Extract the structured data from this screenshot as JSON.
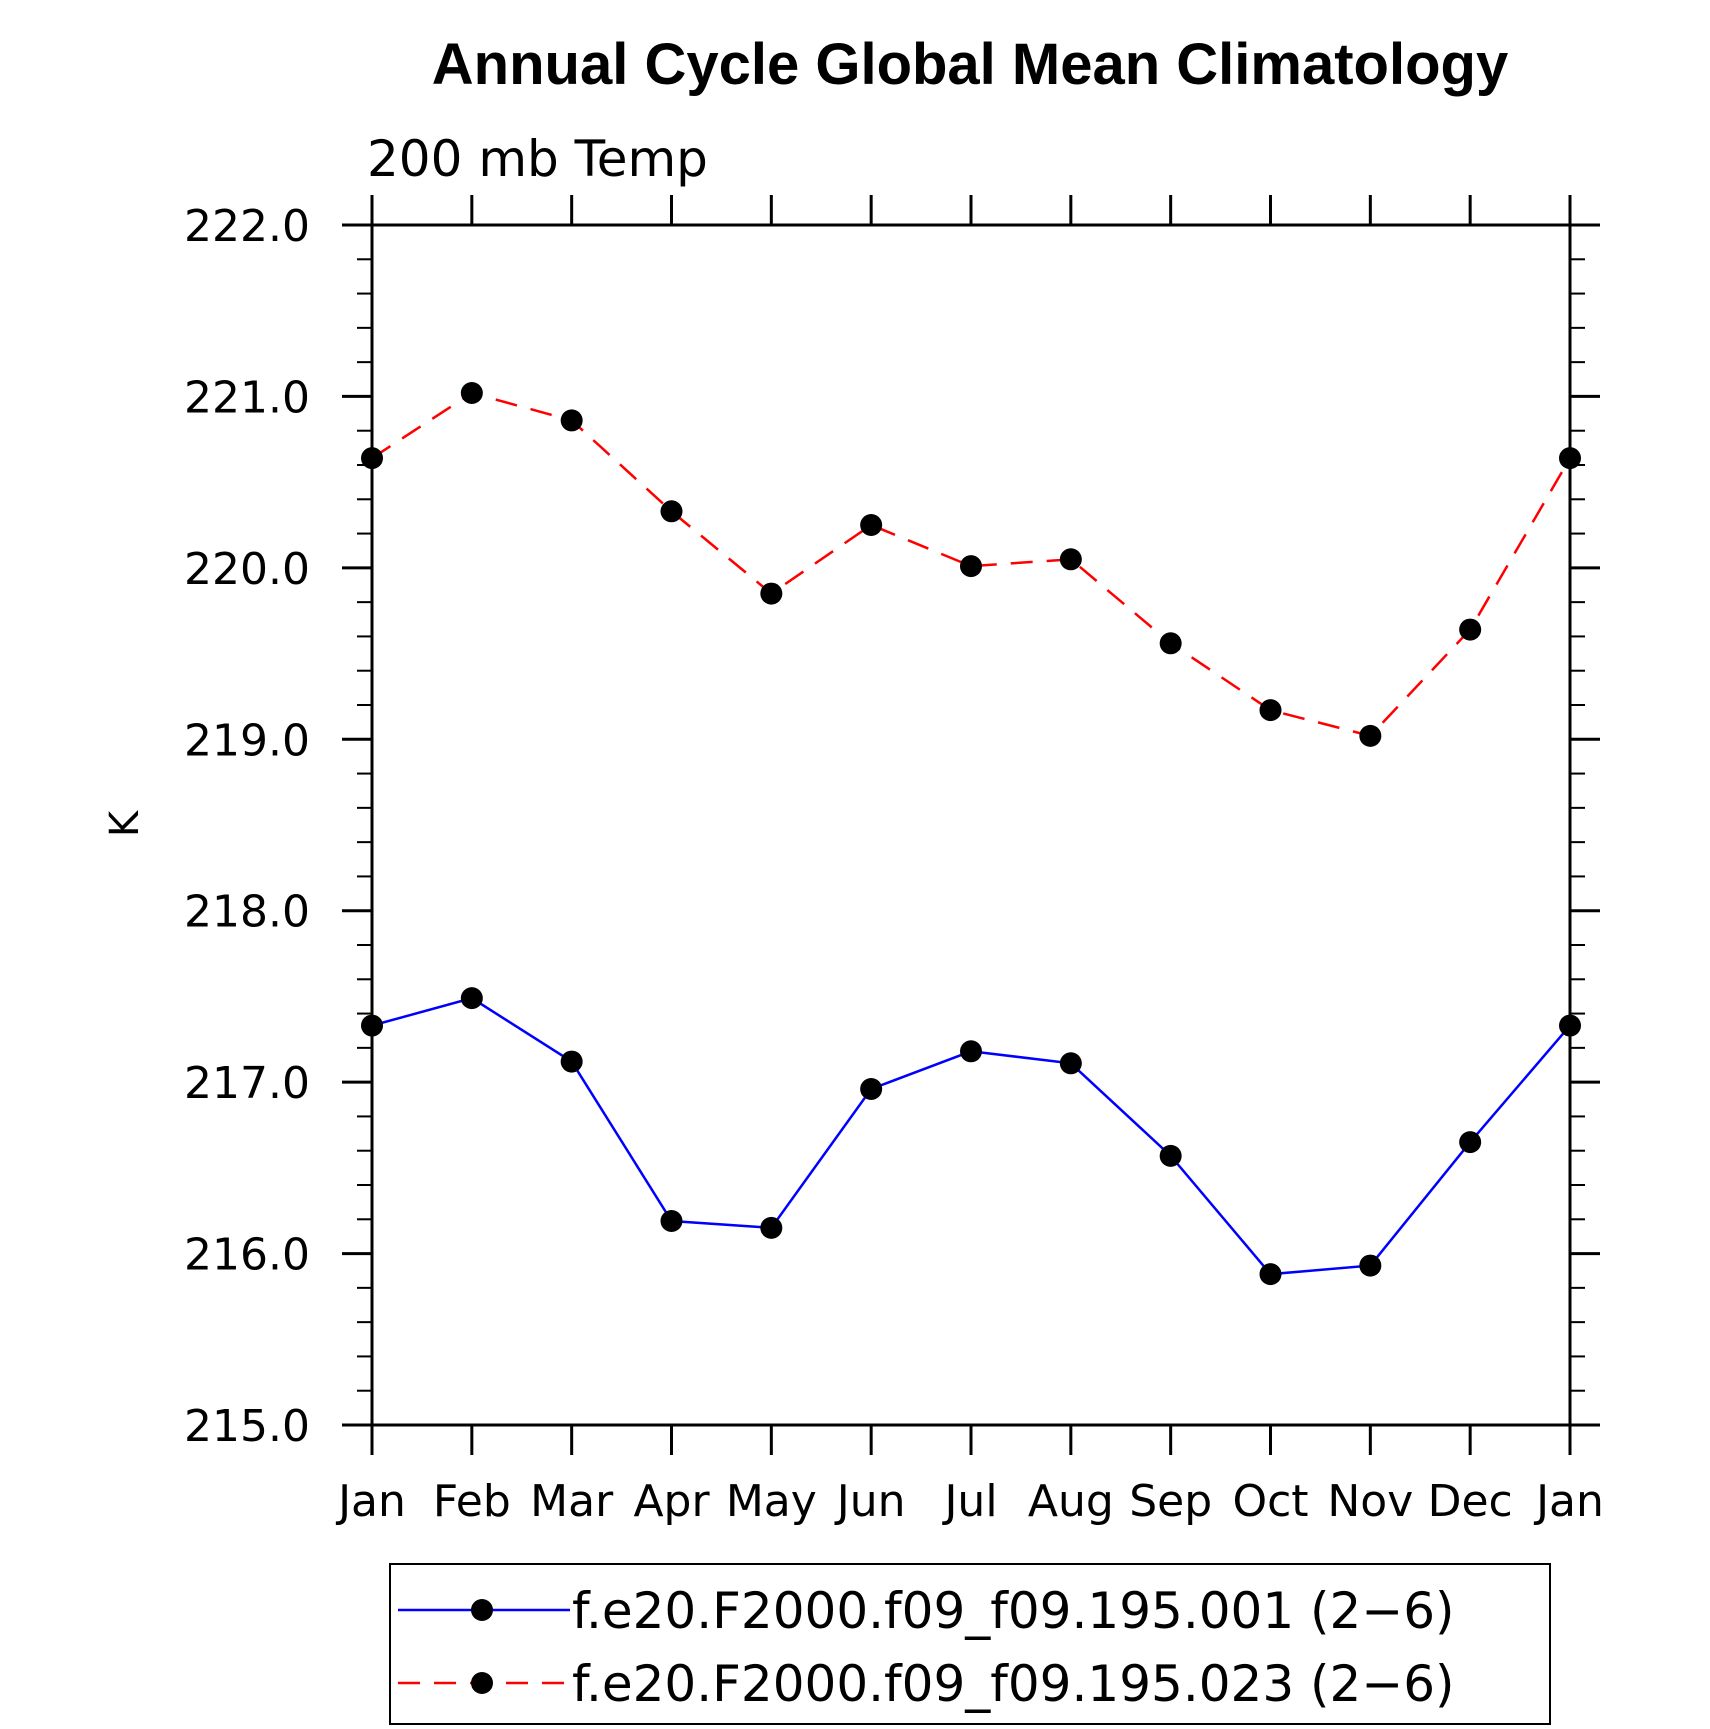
{
  "chart_data": {
    "type": "line",
    "title": "Annual Cycle Global Mean Climatology",
    "subtitle": "200 mb Temp",
    "xlabel": "",
    "ylabel": "K",
    "categories": [
      "Jan",
      "Feb",
      "Mar",
      "Apr",
      "May",
      "Jun",
      "Jul",
      "Aug",
      "Sep",
      "Oct",
      "Nov",
      "Dec",
      "Jan"
    ],
    "ylim": [
      215.0,
      222.0
    ],
    "yticks": [
      "215.0",
      "216.0",
      "217.0",
      "218.0",
      "219.0",
      "220.0",
      "221.0",
      "222.0"
    ],
    "grid": false,
    "legend_position": "bottom",
    "series": [
      {
        "name": "f.e20.F2000.f09_f09.195.001 (2−6)",
        "color": "#0000ff",
        "line_style": "solid",
        "marker": "filled-circle",
        "values": [
          217.33,
          217.49,
          217.12,
          216.19,
          216.15,
          216.96,
          217.18,
          217.11,
          216.57,
          215.88,
          215.93,
          216.65,
          217.33
        ]
      },
      {
        "name": "f.e20.F2000.f09_f09.195.023 (2−6)",
        "color": "#ff0000",
        "line_style": "dashed",
        "marker": "filled-circle",
        "values": [
          220.64,
          221.02,
          220.86,
          220.33,
          219.85,
          220.25,
          220.01,
          220.05,
          219.56,
          219.17,
          219.02,
          219.64,
          220.64
        ]
      }
    ]
  }
}
